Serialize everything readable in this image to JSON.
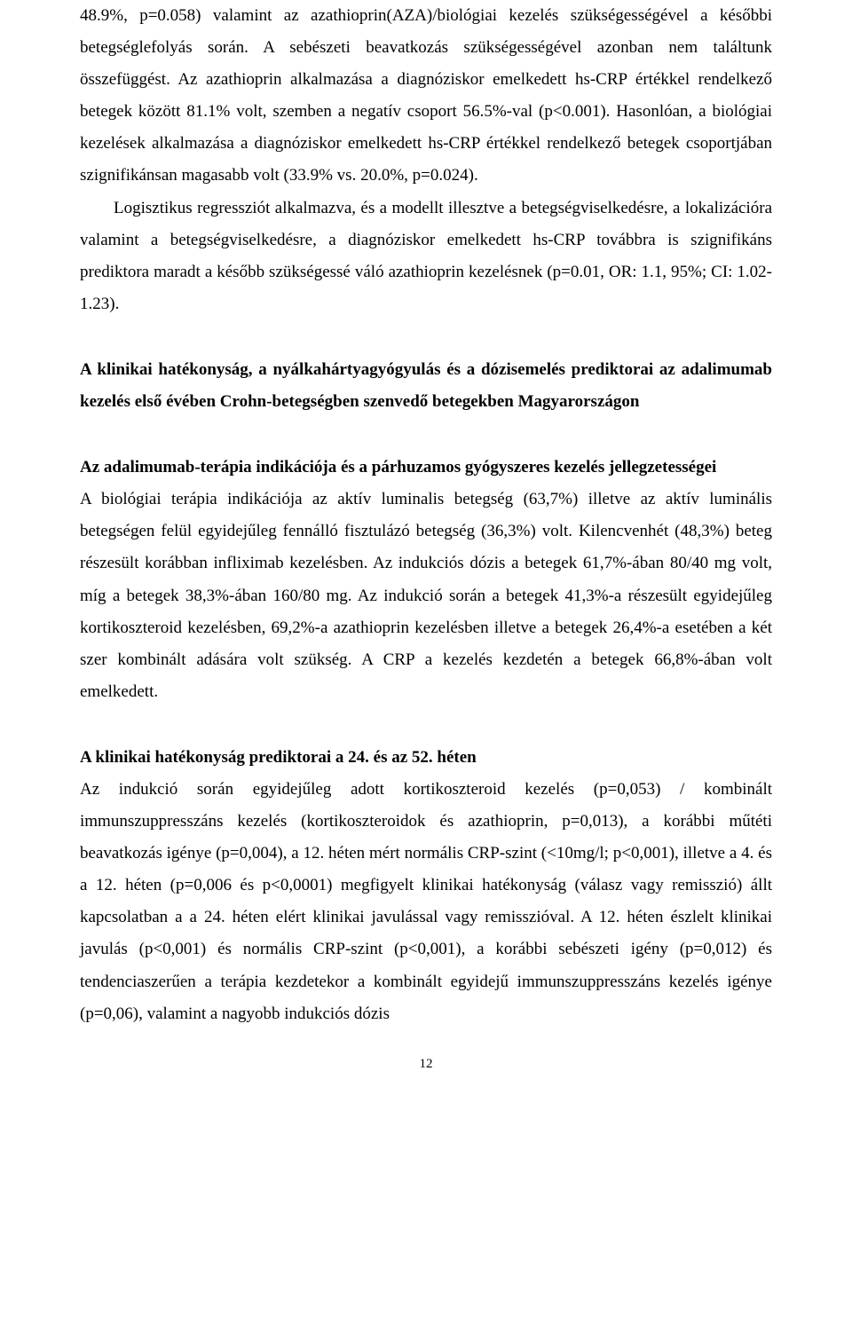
{
  "p1": "48.9%, p=0.058) valamint az azathioprin(AZA)/biológiai kezelés szükségességével a későbbi betegséglefolyás során. A sebészeti beavatkozás szükségességével azonban nem találtunk összefüggést. Az azathioprin alkalmazása a diagnóziskor emelkedett hs-CRP értékkel rendelkező betegek között 81.1% volt, szemben a negatív csoport 56.5%-val (p<0.001). Hasonlóan, a biológiai kezelések alkalmazása a diagnóziskor emelkedett hs-CRP értékkel rendelkező betegek csoportjában szignifikánsan magasabb volt (33.9% vs. 20.0%, p=0.024).",
  "p2": "Logisztikus regressziót alkalmazva, és a modellt illesztve a betegségviselkedésre, a lokalizációra valamint a betegségviselkedésre, a diagnóziskor emelkedett hs-CRP továbbra is szignifikáns prediktora maradt a később szükségessé váló azathioprin kezelésnek (p=0.01, OR: 1.1, 95%; CI: 1.02-1.23).",
  "h1": "A klinikai hatékonyság, a nyálkahártyagyógyulás és a dózisemelés prediktorai az adalimumab kezelés első évében Crohn-betegségben szenvedő betegekben Magyarországon",
  "h2": "Az adalimumab-terápia indikációja és a párhuzamos gyógyszeres kezelés jellegzetességei",
  "p3": "A biológiai terápia indikációja az aktív luminalis betegség (63,7%) illetve az aktív luminális betegségen felül egyidejűleg fennálló fisztulázó betegség (36,3%) volt. Kilencvenhét (48,3%) beteg részesült korábban infliximab kezelésben. Az indukciós dózis a betegek 61,7%-ában 80/40 mg volt, míg a betegek 38,3%-ában 160/80 mg. Az indukció során a betegek 41,3%-a részesült egyidejűleg kortikoszteroid kezelésben, 69,2%-a azathioprin kezelésben illetve a betegek 26,4%-a esetében a két szer kombinált adására volt szükség. A CRP a kezelés kezdetén a betegek 66,8%-ában volt emelkedett.",
  "h3": "A klinikai hatékonyság prediktorai a 24. és az 52. héten",
  "p4": "Az indukció során egyidejűleg adott kortikoszteroid kezelés (p=0,053) / kombinált immunszuppresszáns kezelés (kortikoszteroidok és azathioprin, p=0,013), a korábbi műtéti beavatkozás igénye (p=0,004), a 12. héten mért normális CRP-szint (<10mg/l; p<0,001), illetve a 4. és a 12. héten (p=0,006 és p<0,0001) megfigyelt klinikai hatékonyság (válasz vagy remisszió) állt kapcsolatban a a 24. héten elért klinikai javulással vagy remisszióval. A 12. héten észlelt klinikai javulás (p<0,001) és normális CRP-szint (p<0,001), a korábbi sebészeti igény (p=0,012) és tendenciaszerűen a terápia kezdetekor a kombinált egyidejű immunszuppresszáns kezelés igénye (p=0,06), valamint a nagyobb indukciós dózis",
  "pagenum": "12"
}
